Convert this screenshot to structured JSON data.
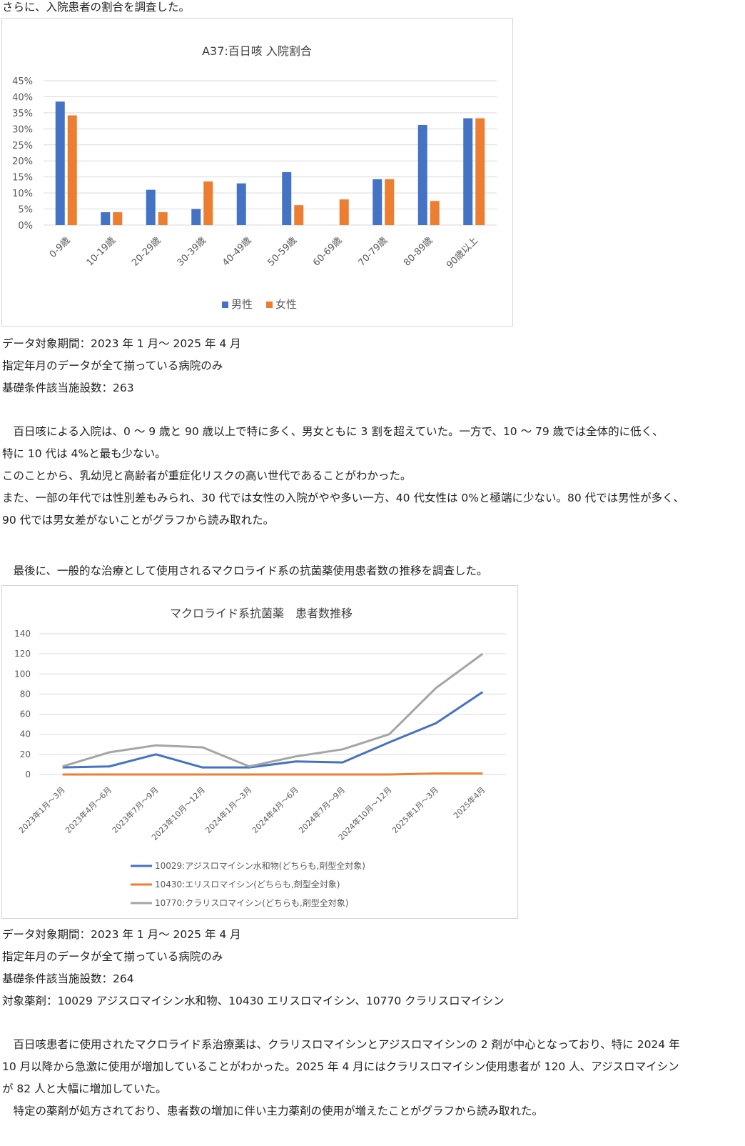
{
  "text": {
    "intro1": "さらに、入院患者の割合を調査した。",
    "meta1": [
      "データ対象期間：2023 年 1 月～ 2025 年 4 月",
      "指定年月のデータが全て揃っている病院のみ",
      "基礎条件該当施設数：263"
    ],
    "para1": [
      "　百日咳による入院は、0 ～ 9 歳と 90 歳以上で特に多く、男女ともに 3 割を超えていた。一方で、10 ～ 79 歳では全体的に低く、",
      "特に 10 代は 4%と最も少ない。",
      "このことから、乳幼児と高齢者が重症化リスクの高い世代であることがわかった。",
      "また、一部の年代では性別差もみられ、30 代では女性の入院がやや多い一方、40 代女性は 0%と極端に少ない。80 代では男性が多く、",
      "90 代では男女差がないことがグラフから読み取れた。"
    ],
    "intro2": "　最後に、一般的な治療として使用されるマクロライド系の抗菌薬使用患者数の推移を調査した。",
    "meta2": [
      "データ対象期間：2023 年 1 月～ 2025 年 4 月",
      "指定年月のデータが全て揃っている病院のみ",
      "基礎条件該当施設数：264",
      "対象薬剤：10029 アジスロマイシン水和物、10430 エリスロマイシン、10770 クラリスロマイシン"
    ],
    "para2": [
      "　百日咳患者に使用されたマクロライド系治療薬は、クラリスロマイシンとアジスロマイシンの 2 剤が中心となっており、特に 2024 年",
      "10 月以降から急激に使用が増加していることがわかった。2025 年 4 月にはクラリスロマイシン使用患者が 120 人、アジスロマイシン",
      "が 82 人と大幅に増加していた。",
      "　特定の薬剤が処方されており、患者数の増加に伴い主力薬剤の使用が増えたことがグラフから読み取れた。"
    ]
  },
  "chart_data": [
    {
      "type": "bar",
      "title": "A37:百日咳 入院割合",
      "categories": [
        "0-9歳",
        "10-19歳",
        "20-29歳",
        "30-39歳",
        "40-49歳",
        "50-59歳",
        "60-69歳",
        "70-79歳",
        "80-89歳",
        "90歳以上"
      ],
      "series": [
        {
          "name": "男性",
          "color": "#4472C4",
          "values": [
            38.5,
            4,
            11,
            5,
            13,
            16.5,
            0,
            14.3,
            31.2,
            33.3
          ]
        },
        {
          "name": "女性",
          "color": "#ED7D31",
          "values": [
            34.2,
            4,
            4,
            13.6,
            0,
            6.2,
            8,
            14.3,
            7.5,
            33.3
          ]
        }
      ],
      "ylim": [
        0,
        45
      ],
      "yticks": [
        "45%",
        "40%",
        "35%",
        "30%",
        "25%",
        "20%",
        "15%",
        "10%",
        "5%",
        "0%"
      ],
      "legend_position": "bottom",
      "grid": true
    },
    {
      "type": "line",
      "title": "マクロライド系抗菌薬　患者数推移",
      "categories": [
        "2023年1月～3月",
        "2023年4月～6月",
        "2023年7月～9月",
        "2023年10月～12月",
        "2024年1月～3月",
        "2024年4月～6月",
        "2024年7月～9月",
        "2024年10月～12月",
        "2025年1月～3月",
        "2025年4月"
      ],
      "series": [
        {
          "name": "10029:アジスロマイシン水和物(どちらも,剤型全対象)",
          "color": "#4472C4",
          "values": [
            7,
            8,
            20,
            7,
            7,
            13,
            12,
            32,
            51,
            82
          ]
        },
        {
          "name": "10430:エリスロマイシン(どちらも,剤型全対象)",
          "color": "#ED7D31",
          "values": [
            0,
            0,
            0,
            0,
            0,
            0,
            0,
            0,
            1,
            1
          ]
        },
        {
          "name": "10770:クラリスロマイシン(どちらも,剤型全対象)",
          "color": "#A5A5A5",
          "values": [
            8,
            22,
            29,
            27,
            8,
            18,
            25,
            40,
            86,
            120
          ]
        }
      ],
      "ylim": [
        0,
        140
      ],
      "yticks": [
        "140",
        "120",
        "100",
        "80",
        "60",
        "40",
        "20",
        "0"
      ],
      "legend_position": "bottom",
      "grid": true
    }
  ]
}
